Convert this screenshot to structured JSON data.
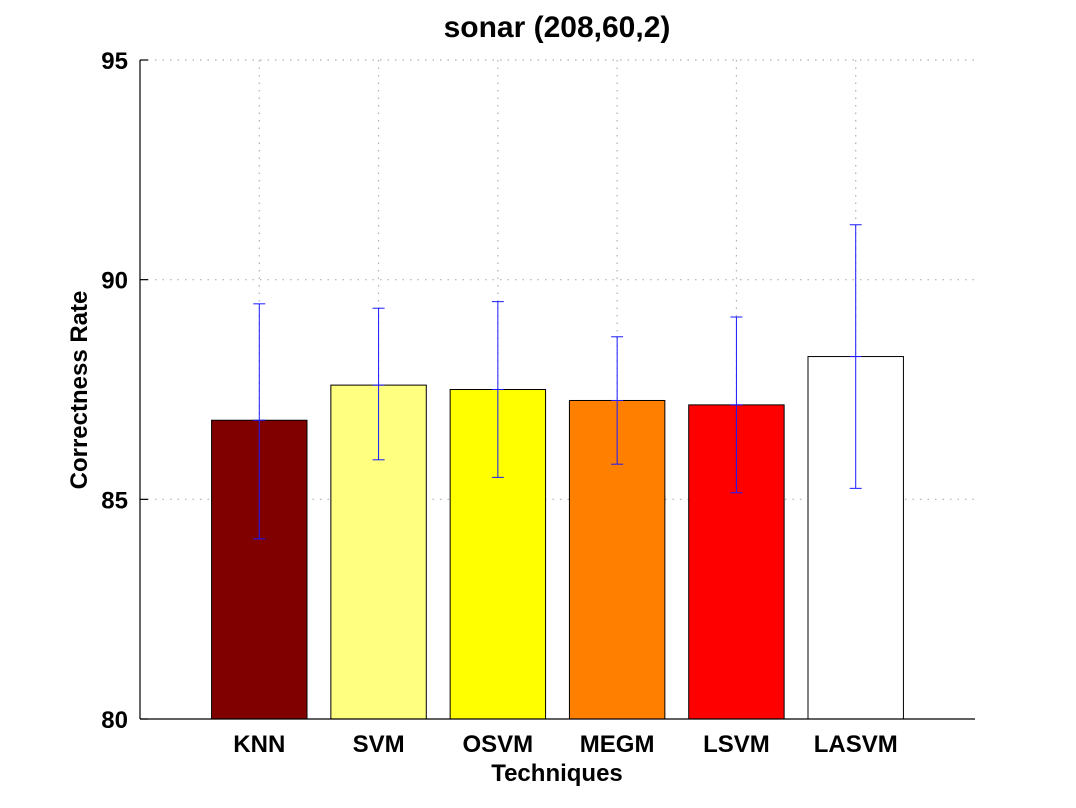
{
  "chart_data": {
    "type": "bar",
    "title": "sonar (208,60,2)",
    "xlabel": "Techniques",
    "ylabel": "Correctness Rate",
    "ylim": [
      80,
      95
    ],
    "yticks": [
      "80",
      "85",
      "90",
      "95"
    ],
    "grid": true,
    "categories": [
      "KNN",
      "SVM",
      "OSVM",
      "MEGM",
      "LSVM",
      "LASVM"
    ],
    "values": [
      86.8,
      87.6,
      87.5,
      87.25,
      87.15,
      88.25
    ],
    "error_low": [
      84.1,
      85.9,
      85.5,
      85.8,
      85.15,
      85.25
    ],
    "error_high": [
      89.45,
      89.35,
      89.5,
      88.7,
      89.15,
      91.25
    ],
    "colors": [
      "#800000",
      "#ffff80",
      "#ffff00",
      "#ff8000",
      "#ff0000",
      "#ffffff"
    ],
    "error_color": "#1a1aff"
  }
}
